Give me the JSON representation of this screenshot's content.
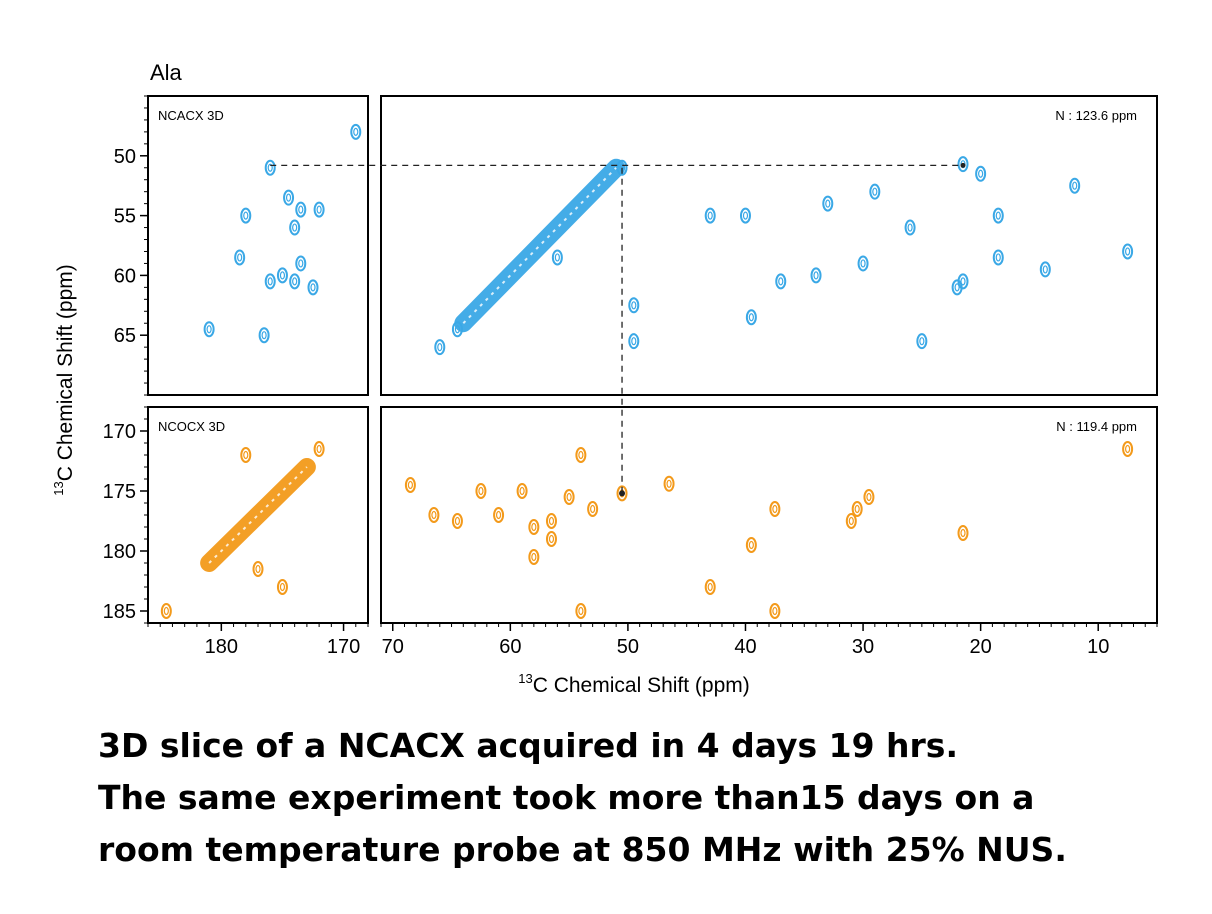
{
  "chart_data": {
    "type": "scatter",
    "residue": "Ala",
    "colors": {
      "ncacx": "#3aa8e6",
      "ncocx": "#f39a1b",
      "guide": "#222222"
    },
    "axes": {
      "x_label_sup": "13",
      "x_label": "C Chemical Shift  (ppm)",
      "y_label_sup": "13",
      "y_label": "C Chemical Shift  (ppm)",
      "left_x_ticks": [
        "180",
        "170"
      ],
      "right_x_ticks": [
        "70",
        "60",
        "50",
        "40",
        "30",
        "20",
        "10"
      ],
      "top_y_ticks": [
        "50",
        "55",
        "60",
        "65"
      ],
      "bottom_y_ticks": [
        "170",
        "175",
        "180",
        "185"
      ]
    },
    "panels": [
      {
        "id": "ncacx-left",
        "label": "NCACX 3D",
        "xlim": [
          186,
          168
        ],
        "ylim": [
          45,
          70
        ],
        "color": "ncacx",
        "peaks": [
          [
            176,
            51
          ],
          [
            174.5,
            53.5
          ],
          [
            173.5,
            54.5
          ],
          [
            172,
            54.5
          ],
          [
            178,
            55
          ],
          [
            174,
            56
          ],
          [
            173.5,
            59
          ],
          [
            178.5,
            58.5
          ],
          [
            174,
            60.5
          ],
          [
            172.5,
            61
          ],
          [
            175,
            60
          ],
          [
            176,
            60.5
          ],
          [
            176.5,
            65
          ],
          [
            181,
            64.5
          ],
          [
            169,
            48
          ]
        ]
      },
      {
        "id": "ncacx-right",
        "label": "N : 123.6 ppm",
        "xlim": [
          71,
          5
        ],
        "ylim": [
          45,
          70
        ],
        "color": "ncacx",
        "diagonal": [
          [
            64,
            64
          ],
          [
            51,
            51
          ]
        ],
        "peaks": [
          [
            50.5,
            51
          ],
          [
            56,
            58.5
          ],
          [
            66,
            66
          ],
          [
            64.5,
            64.5
          ],
          [
            49.5,
            62.5
          ],
          [
            49.5,
            65.5
          ],
          [
            33,
            54
          ],
          [
            34,
            60
          ],
          [
            30,
            59
          ],
          [
            29,
            53
          ],
          [
            26,
            56
          ],
          [
            25,
            65.5
          ],
          [
            22,
            61
          ],
          [
            21.5,
            60.5
          ],
          [
            18.5,
            55
          ],
          [
            18.5,
            58.5
          ],
          [
            14.5,
            59.5
          ],
          [
            12,
            52.5
          ],
          [
            7.5,
            58
          ],
          [
            37,
            60.5
          ],
          [
            39.5,
            63.5
          ],
          [
            40,
            55
          ],
          [
            43,
            55
          ],
          [
            21.5,
            50.7
          ],
          [
            20,
            51.5
          ]
        ]
      },
      {
        "id": "ncocx-left",
        "label": "NCOCX 3D",
        "xlim": [
          186,
          168
        ],
        "ylim": [
          168,
          186
        ],
        "color": "ncocx",
        "diagonal": [
          [
            181,
            181
          ],
          [
            173,
            173
          ]
        ],
        "peaks": [
          [
            172,
            171.5
          ],
          [
            177,
            181.5
          ],
          [
            175,
            183
          ],
          [
            184.5,
            185
          ],
          [
            178,
            172
          ]
        ]
      },
      {
        "id": "ncocx-right",
        "label": "N : 119.4 ppm",
        "xlim": [
          71,
          5
        ],
        "ylim": [
          168,
          186
        ],
        "color": "ncocx",
        "peaks": [
          [
            54,
            172
          ],
          [
            50.5,
            175.2
          ],
          [
            46.5,
            174.4
          ],
          [
            53,
            176.5
          ],
          [
            55,
            175.5
          ],
          [
            56.5,
            177.5
          ],
          [
            58,
            178
          ],
          [
            56.5,
            179
          ],
          [
            59,
            175
          ],
          [
            61,
            177
          ],
          [
            62.5,
            175
          ],
          [
            64.5,
            177.5
          ],
          [
            66.5,
            177
          ],
          [
            68.5,
            174.5
          ],
          [
            43,
            183
          ],
          [
            39.5,
            179.5
          ],
          [
            37.5,
            176.5
          ],
          [
            31,
            177.5
          ],
          [
            30.5,
            176.5
          ],
          [
            29.5,
            175.5
          ],
          [
            21.5,
            178.5
          ],
          [
            7.5,
            171.5
          ],
          [
            54,
            185
          ],
          [
            37.5,
            185
          ],
          [
            58,
            180.5
          ]
        ]
      }
    ],
    "guides": [
      {
        "type": "horizontal",
        "y": 50.8,
        "x_from_left": 176,
        "x_to_right": 21.5
      },
      {
        "type": "vertical",
        "x": 50.5,
        "y_from": 51,
        "y_to": 175.2
      }
    ]
  },
  "caption": {
    "line1": "3D slice of a NCACX acquired in 4 days 19 hrs.",
    "line2": "The same experiment took more than15 days on a",
    "line3": "room temperature probe at 850 MHz with 25% NUS."
  }
}
